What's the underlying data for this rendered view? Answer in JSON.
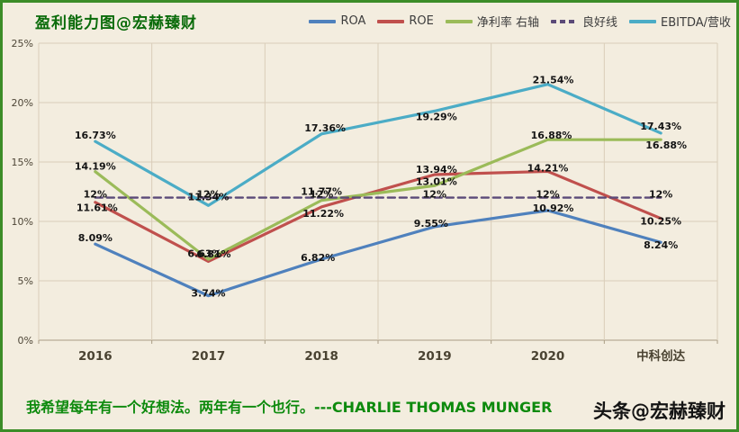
{
  "title": "盈利能力图@宏赫臻财",
  "footer": {
    "quote": "我希望每年有一个好想法。两年有一个也行。---CHARLIE THOMAS MUNGER"
  },
  "watermark": "头条@宏赫臻财",
  "colors": {
    "background": "#f3eddf",
    "frame_border": "#3c8c28",
    "grid": "#d9cdb9",
    "axis": "#a99c84",
    "tick_text": "#4e4637",
    "title_green": "#0a6b0a",
    "quote_green": "#0d8a0d"
  },
  "chart_data": {
    "type": "line",
    "title": "盈利能力图@宏赫臻财",
    "categories": [
      "2016",
      "2017",
      "2018",
      "2019",
      "2020",
      "中科创达"
    ],
    "series": [
      {
        "name": "ROA",
        "color": "#4f81bd",
        "dashed": false,
        "values": [
          8.09,
          3.74,
          6.82,
          9.55,
          10.92,
          8.24
        ]
      },
      {
        "name": "ROE",
        "color": "#c0504d",
        "dashed": false,
        "values": [
          11.61,
          6.63,
          11.22,
          13.94,
          14.21,
          10.25
        ]
      },
      {
        "name": "净利率 右轴",
        "color": "#9bbb59",
        "dashed": false,
        "values": [
          14.19,
          6.81,
          11.77,
          13.01,
          16.88,
          16.88
        ]
      },
      {
        "name": "良好线",
        "color": "#5b4a78",
        "dashed": true,
        "values": [
          12,
          12,
          12,
          12,
          12,
          12
        ]
      },
      {
        "name": "EBITDA/营收",
        "color": "#4bacc6",
        "dashed": false,
        "values": [
          16.73,
          11.34,
          17.36,
          19.29,
          21.54,
          17.43
        ]
      }
    ],
    "ylim": [
      0,
      25
    ],
    "y_tick_labels": [
      "0%",
      "5%",
      "10%",
      "15%",
      "20%",
      "25%"
    ],
    "grid": true,
    "legend_position": "top",
    "data_labels": true
  }
}
